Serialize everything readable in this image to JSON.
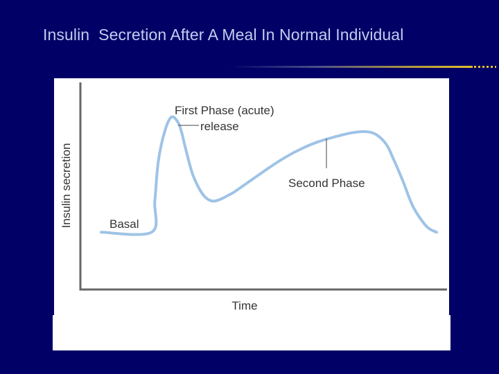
{
  "slide": {
    "title": "Insulin  Secretion After A Meal In Normal Individual",
    "background_color": "#000066",
    "title_color": "#c4ccf0"
  },
  "chart_data": {
    "type": "line",
    "title": "",
    "xlabel": "Time",
    "ylabel": "Insulin secretion",
    "xlim": [
      0,
      100
    ],
    "ylim": [
      0,
      100
    ],
    "tick_labels": false,
    "grid": false,
    "legend": "none",
    "line_color": "#9ec3e6",
    "series": [
      {
        "values_are_schematic": true,
        "x": [
          0,
          15,
          16,
          17,
          19,
          21,
          23,
          24,
          25,
          27,
          29,
          31,
          33,
          35,
          38,
          40,
          45,
          50,
          55,
          60,
          65,
          70,
          75,
          79,
          82,
          85,
          87,
          90,
          93,
          97,
          100
        ],
        "y": [
          24,
          24,
          40,
          60,
          76,
          83,
          80,
          75,
          68,
          55,
          47,
          42,
          40,
          40.5,
          43,
          45,
          51,
          57,
          62.5,
          67,
          70.5,
          73,
          75,
          75.5,
          74,
          69,
          62,
          50,
          37,
          27,
          24
        ]
      }
    ],
    "annotations": [
      {
        "id": "basal",
        "text": "Basal"
      },
      {
        "id": "first-phase",
        "text": "First Phase (acute)",
        "text2": "release"
      },
      {
        "id": "second-phase",
        "text": "Second Phase"
      }
    ]
  }
}
